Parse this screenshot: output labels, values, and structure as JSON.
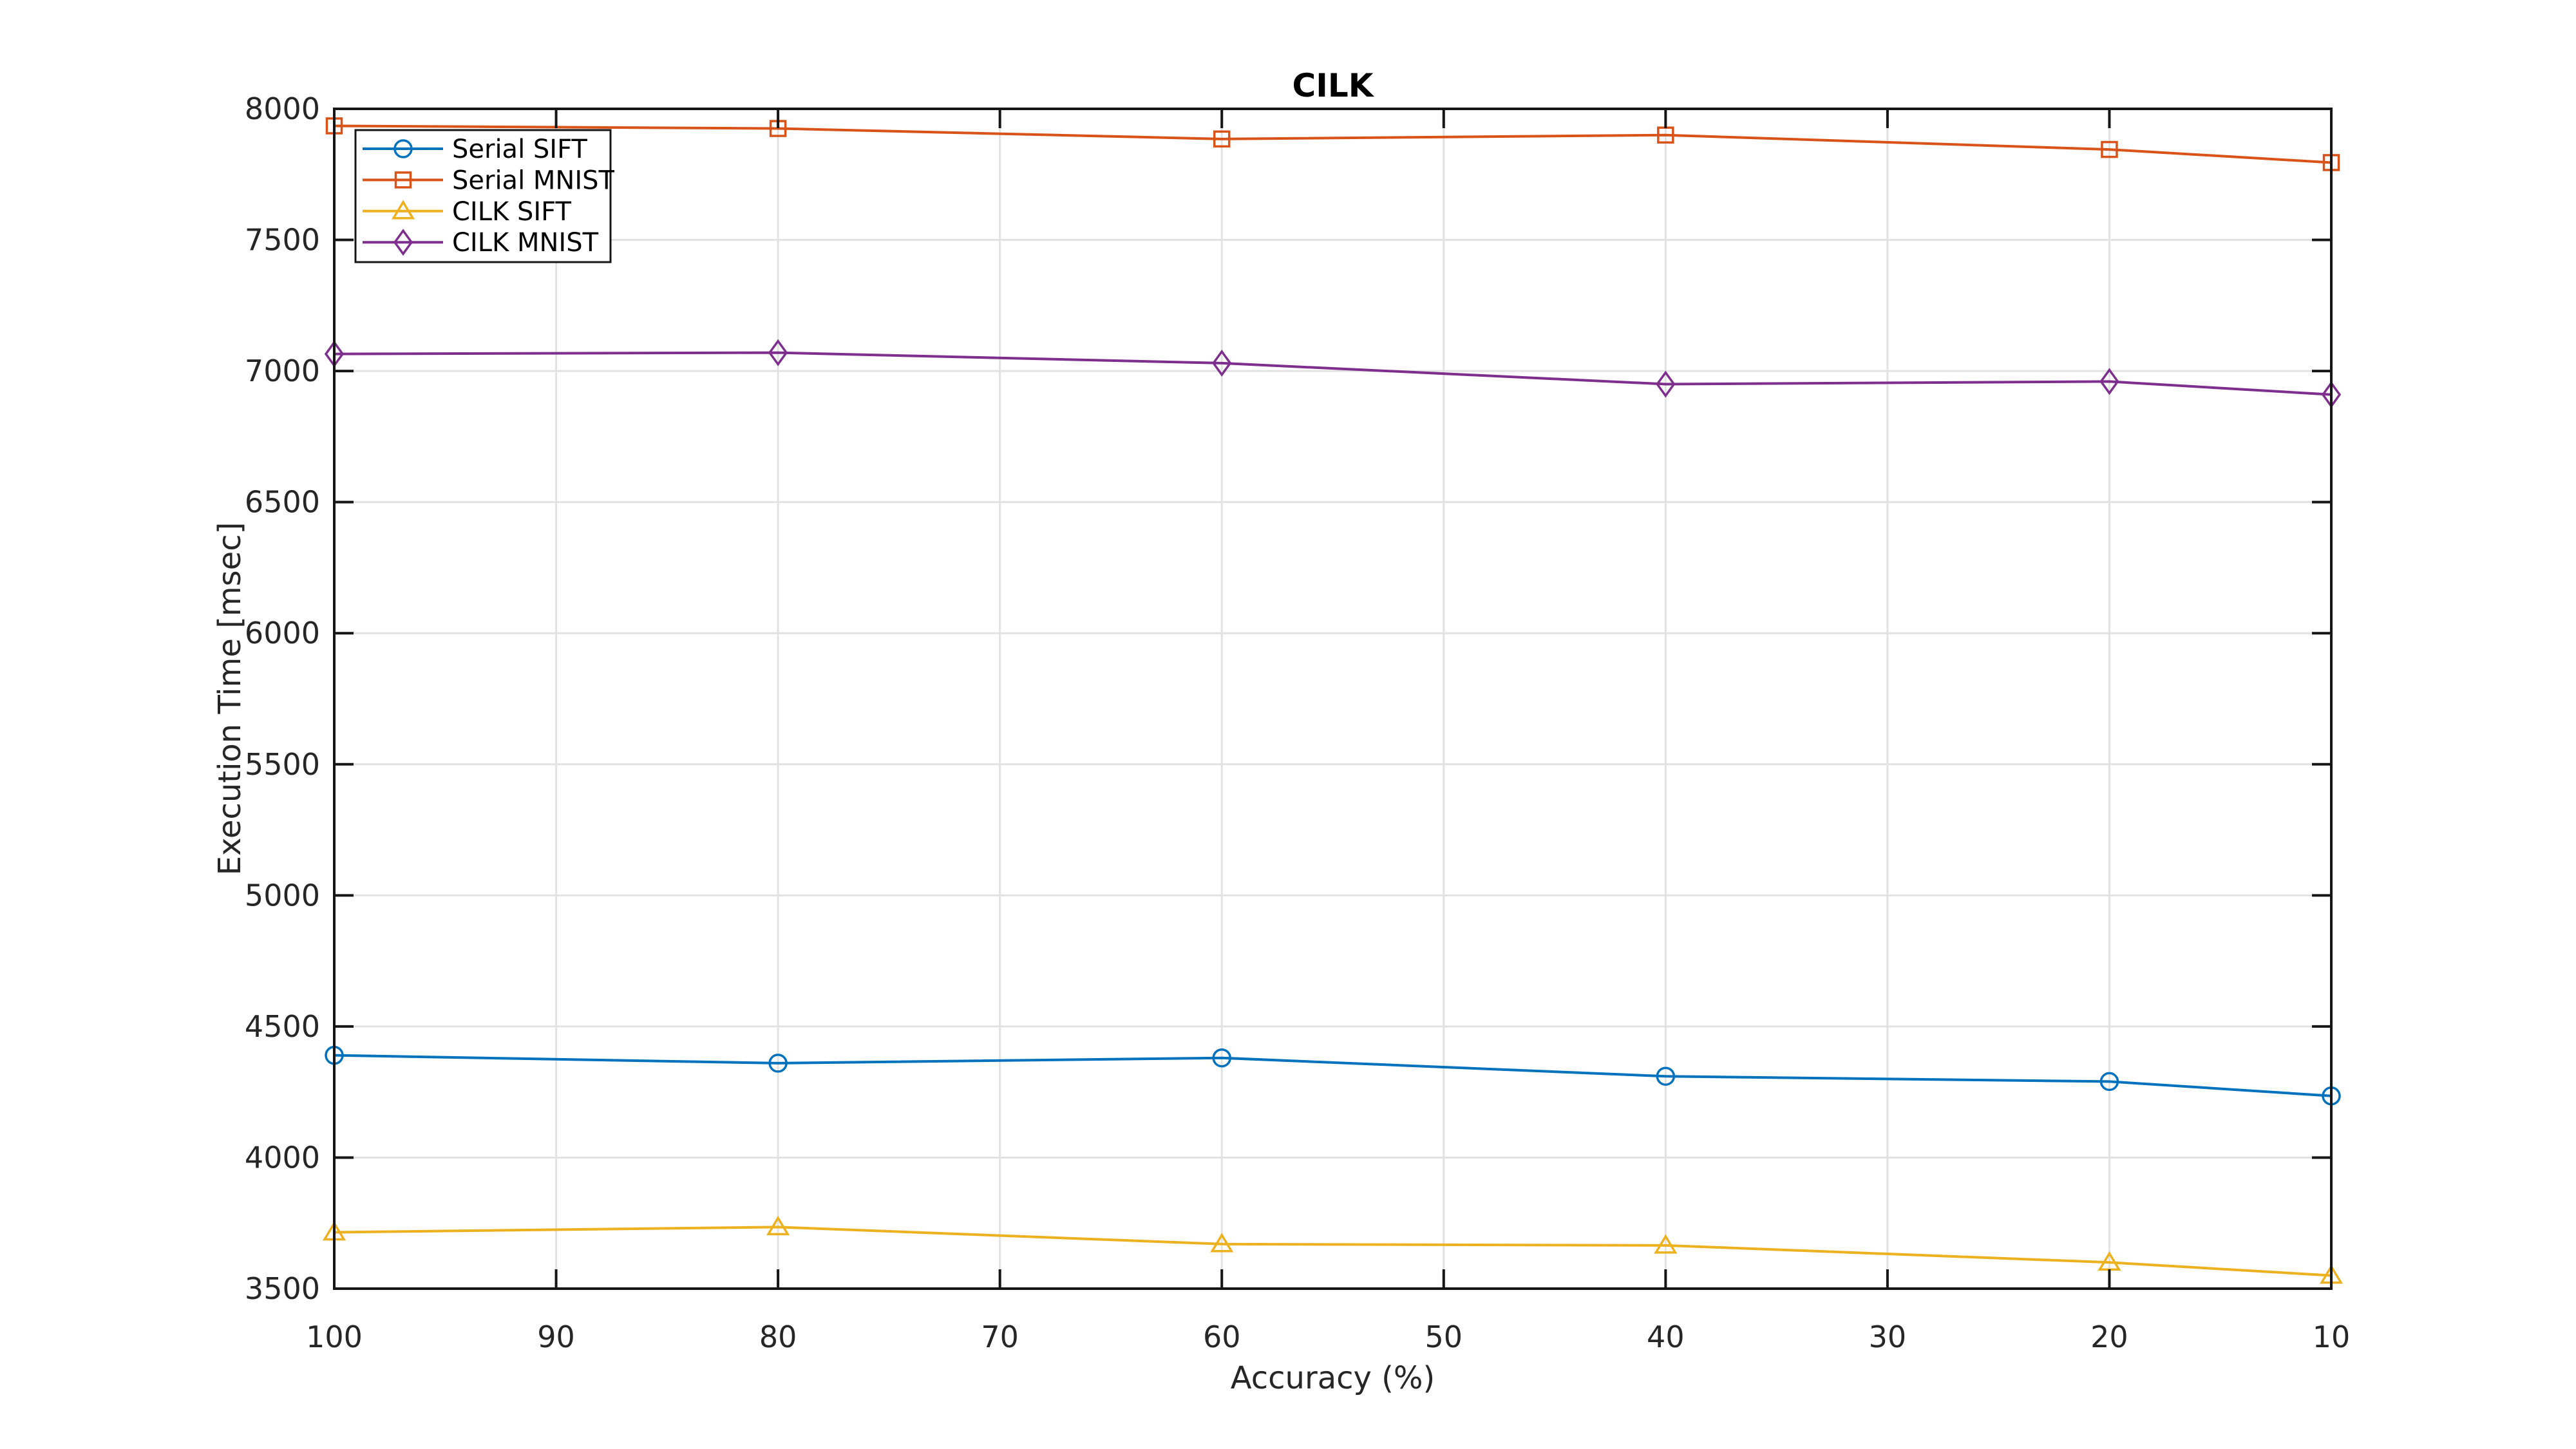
{
  "chart_data": {
    "type": "line",
    "title": "CILK",
    "xlabel": "Accuracy (%)",
    "ylabel": "Execution Time [msec]",
    "x": [
      100,
      80,
      60,
      40,
      20,
      10
    ],
    "x_ticks": [
      100,
      90,
      80,
      70,
      60,
      50,
      40,
      30,
      20,
      10
    ],
    "y_ticks": [
      3500,
      4000,
      4500,
      5000,
      5500,
      6000,
      6500,
      7000,
      7500,
      8000
    ],
    "xlim": [
      100,
      10
    ],
    "ylim": [
      3500,
      8000
    ],
    "x_axis_reversed": true,
    "grid": true,
    "legend_position": "top-left",
    "series": [
      {
        "name": "Serial SIFT",
        "color": "#0072BD",
        "marker": "circle",
        "values": [
          4390,
          4360,
          4380,
          4310,
          4290,
          4235
        ]
      },
      {
        "name": "Serial MNIST",
        "color": "#D95319",
        "marker": "square",
        "values": [
          7935,
          7925,
          7885,
          7900,
          7845,
          7795
        ]
      },
      {
        "name": "CILK SIFT",
        "color": "#EDB120",
        "marker": "triangle",
        "values": [
          3715,
          3735,
          3670,
          3665,
          3600,
          3550
        ]
      },
      {
        "name": "CILK MNIST",
        "color": "#7E2F8E",
        "marker": "diamond",
        "values": [
          7065,
          7070,
          7030,
          6950,
          6960,
          6910
        ]
      }
    ],
    "colors": {
      "grid": "#e2e2e2",
      "axis": "#151515",
      "tick_text": "#262626",
      "background": "#ffffff"
    }
  }
}
